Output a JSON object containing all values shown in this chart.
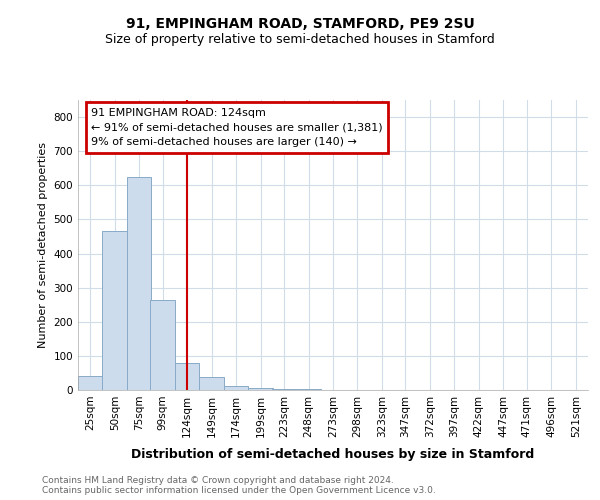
{
  "title1": "91, EMPINGHAM ROAD, STAMFORD, PE9 2SU",
  "title2": "Size of property relative to semi-detached houses in Stamford",
  "xlabel": "Distribution of semi-detached houses by size in Stamford",
  "ylabel": "Number of semi-detached properties",
  "footnote": "Contains HM Land Registry data © Crown copyright and database right 2024.\nContains public sector information licensed under the Open Government Licence v3.0.",
  "annotation_line1": "91 EMPINGHAM ROAD: 124sqm",
  "annotation_line2": "← 91% of semi-detached houses are smaller (1,381)",
  "annotation_line3": "9% of semi-detached houses are larger (140) →",
  "property_size": 124,
  "bins": [
    25,
    50,
    75,
    99,
    124,
    149,
    174,
    199,
    223,
    248,
    273,
    298,
    323,
    347,
    372,
    397,
    422,
    447,
    471,
    496,
    521
  ],
  "values": [
    40,
    465,
    625,
    265,
    80,
    38,
    13,
    5,
    2,
    2,
    0,
    0,
    0,
    0,
    0,
    0,
    0,
    0,
    0,
    0
  ],
  "bar_color": "#ccdcec",
  "bar_edge_color": "#88aac8",
  "vline_color": "#cc0000",
  "vline_x": 124,
  "annotation_box_edge_color": "#cc0000",
  "ylim": [
    0,
    850
  ],
  "yticks": [
    0,
    100,
    200,
    300,
    400,
    500,
    600,
    700,
    800
  ],
  "grid_color": "#d0dce8",
  "background_color": "#ffffff",
  "title1_fontsize": 10,
  "title2_fontsize": 9,
  "xlabel_fontsize": 9,
  "ylabel_fontsize": 8,
  "annotation_fontsize": 8,
  "tick_fontsize": 7.5,
  "footnote_fontsize": 6.5
}
